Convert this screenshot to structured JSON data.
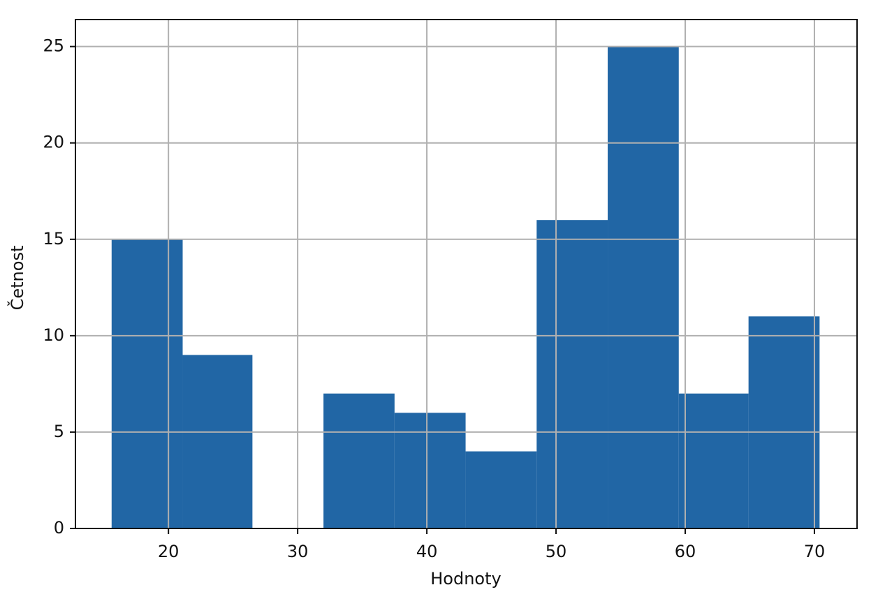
{
  "chart_data": {
    "type": "histogram",
    "xlabel": "Hodnoty",
    "ylabel": "Četnost",
    "bins": [
      15.6,
      21.1,
      26.5,
      32.0,
      37.5,
      43.0,
      48.5,
      54.0,
      59.5,
      64.9,
      70.4
    ],
    "values": [
      15,
      9,
      0,
      7,
      6,
      4,
      16,
      25,
      7,
      11
    ],
    "color": "#2166a5",
    "xlim": [
      12.8,
      73.3
    ],
    "ylim": [
      0,
      26.4
    ],
    "xticks": [
      20,
      30,
      40,
      50,
      60,
      70
    ],
    "yticks": [
      0,
      5,
      10,
      15,
      20,
      25
    ],
    "grid": true
  }
}
